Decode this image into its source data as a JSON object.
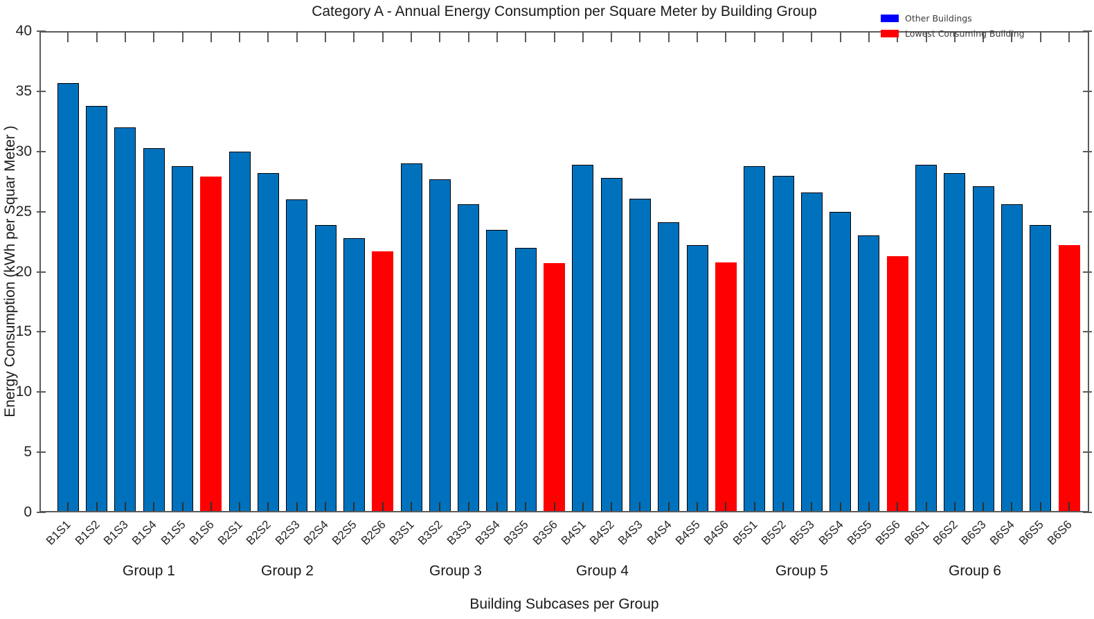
{
  "chart_data": {
    "type": "bar",
    "title": "Category A - Annual Energy Consumption per Square Meter by Building Group",
    "xlabel": "Building Subcases per Group",
    "ylabel": "Energy Consumption (kWh per Squar Meter )",
    "ylim": [
      0,
      40
    ],
    "yticks": [
      0,
      5,
      10,
      15,
      20,
      25,
      30,
      35,
      40
    ],
    "grid": false,
    "categories": [
      "B1S1",
      "B1S2",
      "B1S3",
      "B1S4",
      "B1S5",
      "B1S6",
      "B2S1",
      "B2S2",
      "B2S3",
      "B2S4",
      "B2S5",
      "B2S6",
      "B3S1",
      "B3S2",
      "B3S3",
      "B3S4",
      "B3S5",
      "B3S6",
      "B4S1",
      "B4S2",
      "B4S3",
      "B4S4",
      "B4S5",
      "B4S6",
      "B5S1",
      "B5S2",
      "B5S3",
      "B5S4",
      "B5S5",
      "B5S6",
      "B6S1",
      "B6S2",
      "B6S3",
      "B6S4",
      "B6S5",
      "B6S6"
    ],
    "values": [
      35.7,
      33.8,
      32.0,
      30.3,
      28.8,
      27.9,
      30.0,
      28.2,
      26.0,
      23.9,
      22.8,
      21.7,
      29.0,
      27.7,
      25.6,
      23.5,
      22.0,
      20.7,
      28.9,
      27.8,
      26.1,
      24.1,
      22.2,
      20.8,
      28.8,
      28.0,
      26.6,
      25.0,
      23.0,
      21.3,
      28.9,
      28.2,
      27.1,
      25.6,
      23.9,
      22.2
    ],
    "highlight_indices": [
      5,
      11,
      17,
      23,
      29,
      35
    ],
    "group_labels": [
      "Group 1",
      "Group 2",
      "Group 3",
      "Group 4",
      "Group 5",
      "Group 6"
    ],
    "colors": {
      "other_bar": "#0072BD",
      "lowest_bar": "#FF0000",
      "bar_edge": "#000000",
      "legend_other": "#0000FF",
      "legend_lowest": "#FF0000"
    },
    "legend": {
      "position": "top-right",
      "entries": [
        {
          "label": "Other Buildings",
          "key": "other-buildings",
          "color": "#0000FF"
        },
        {
          "label": "Lowest Consuming Building",
          "key": "lowest-consuming-building",
          "color": "#FF0000"
        }
      ]
    }
  }
}
